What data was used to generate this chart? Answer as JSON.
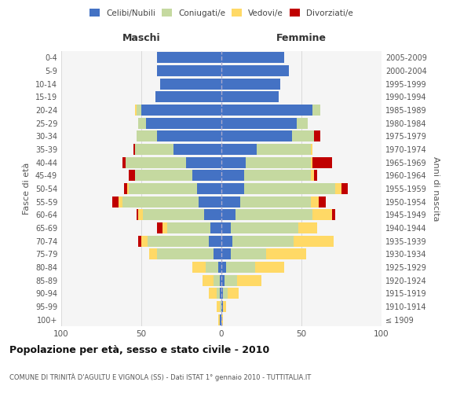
{
  "age_groups": [
    "100+",
    "95-99",
    "90-94",
    "85-89",
    "80-84",
    "75-79",
    "70-74",
    "65-69",
    "60-64",
    "55-59",
    "50-54",
    "45-49",
    "40-44",
    "35-39",
    "30-34",
    "25-29",
    "20-24",
    "15-19",
    "10-14",
    "5-9",
    "0-4"
  ],
  "birth_years": [
    "≤ 1909",
    "1910-1914",
    "1915-1919",
    "1920-1924",
    "1925-1929",
    "1930-1934",
    "1935-1939",
    "1940-1944",
    "1945-1949",
    "1950-1954",
    "1955-1959",
    "1960-1964",
    "1965-1969",
    "1970-1974",
    "1975-1979",
    "1980-1984",
    "1985-1989",
    "1990-1994",
    "1995-1999",
    "2000-2004",
    "2005-2009"
  ],
  "colors": {
    "celibi": "#4472c4",
    "coniugati": "#c5d9a0",
    "vedovi": "#ffd966",
    "divorziati": "#c00000",
    "bg": "#ffffff",
    "panel_bg": "#f5f5f5",
    "grid": "#d5d5d5",
    "dashed_line": "#aaaacc"
  },
  "maschi": {
    "celibi": [
      1,
      0,
      1,
      1,
      2,
      5,
      8,
      7,
      11,
      14,
      15,
      18,
      22,
      30,
      40,
      47,
      50,
      41,
      38,
      40,
      40
    ],
    "coniugati": [
      0,
      1,
      2,
      4,
      8,
      35,
      38,
      27,
      38,
      48,
      43,
      36,
      38,
      24,
      13,
      5,
      3,
      0,
      0,
      0,
      0
    ],
    "vedovi": [
      1,
      2,
      5,
      7,
      8,
      5,
      4,
      3,
      3,
      2,
      1,
      0,
      0,
      0,
      0,
      0,
      1,
      0,
      0,
      0,
      0
    ],
    "divorziati": [
      0,
      0,
      0,
      0,
      0,
      0,
      2,
      3,
      1,
      4,
      2,
      4,
      2,
      1,
      0,
      0,
      0,
      0,
      0,
      0,
      0
    ]
  },
  "femmine": {
    "celibi": [
      0,
      1,
      1,
      2,
      3,
      6,
      7,
      6,
      9,
      12,
      14,
      14,
      15,
      22,
      44,
      47,
      57,
      36,
      37,
      42,
      39
    ],
    "coniugati": [
      0,
      0,
      3,
      8,
      18,
      22,
      38,
      42,
      48,
      44,
      57,
      42,
      41,
      34,
      14,
      7,
      5,
      0,
      0,
      0,
      0
    ],
    "vedovi": [
      1,
      2,
      7,
      15,
      18,
      25,
      25,
      12,
      12,
      5,
      4,
      2,
      1,
      1,
      0,
      0,
      0,
      0,
      0,
      0,
      0
    ],
    "divorziati": [
      0,
      0,
      0,
      0,
      0,
      0,
      0,
      0,
      2,
      4,
      4,
      2,
      12,
      0,
      4,
      0,
      0,
      0,
      0,
      0,
      0
    ]
  },
  "xlim": [
    -100,
    100
  ],
  "xticks": [
    -100,
    -50,
    0,
    50,
    100
  ],
  "xticklabels": [
    "100",
    "50",
    "0",
    "50",
    "100"
  ],
  "title_main": "Popolazione per età, sesso e stato civile - 2010",
  "title_sub": "COMUNE DI TRINITÀ D'AGULTU E VIGNOLA (SS) - Dati ISTAT 1° gennaio 2010 - TUTTITALIA.IT",
  "ylabel_left": "Fasce di età",
  "ylabel_right": "Anni di nascita",
  "header_maschi": "Maschi",
  "header_femmine": "Femmine",
  "legend_labels": [
    "Celibi/Nubili",
    "Coniugati/e",
    "Vedovi/e",
    "Divorziati/e"
  ]
}
